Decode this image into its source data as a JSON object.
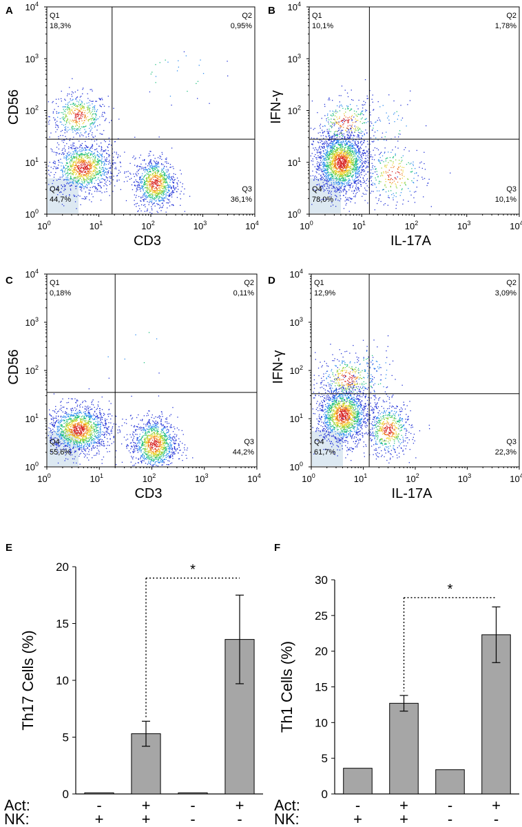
{
  "chart_data": [
    {
      "type": "scatter",
      "panel": "A",
      "xlabel": "CD3",
      "ylabel": "CD56",
      "x_scale": "log",
      "y_scale": "log",
      "xlim": [
        1,
        10000
      ],
      "ylim": [
        1,
        10000
      ],
      "x_ticks": [
        {
          "base": "10",
          "exp": "0"
        },
        {
          "base": "10",
          "exp": "1"
        },
        {
          "base": "10",
          "exp": "2"
        },
        {
          "base": "10",
          "exp": "3"
        },
        {
          "base": "10",
          "exp": "4"
        }
      ],
      "y_ticks": [
        {
          "base": "10",
          "exp": "0"
        },
        {
          "base": "10",
          "exp": "1"
        },
        {
          "base": "10",
          "exp": "2"
        },
        {
          "base": "10",
          "exp": "3"
        },
        {
          "base": "10",
          "exp": "4"
        }
      ],
      "gate_x": 18,
      "gate_y": 28,
      "quadrants": {
        "Q1": {
          "label": "Q1",
          "value": "18,3%"
        },
        "Q2": {
          "label": "Q2",
          "value": "0,95%"
        },
        "Q3": {
          "label": "Q3",
          "value": "36,1%"
        },
        "Q4": {
          "label": "Q4",
          "value": "44,7%"
        }
      },
      "populations": [
        {
          "center": [
            4,
            80
          ],
          "spread": [
            0.28,
            0.22
          ],
          "weight": 0.18
        },
        {
          "center": [
            5,
            8
          ],
          "spread": [
            0.3,
            0.25
          ],
          "weight": 0.45
        },
        {
          "center": [
            120,
            4
          ],
          "spread": [
            0.2,
            0.25
          ],
          "weight": 0.36
        },
        {
          "center": [
            300,
            500
          ],
          "spread": [
            0.4,
            0.3
          ],
          "weight": 0.01
        }
      ]
    },
    {
      "type": "scatter",
      "panel": "B",
      "xlabel": "IL-17A",
      "ylabel": "IFN-γ",
      "x_scale": "log",
      "y_scale": "log",
      "xlim": [
        1,
        10000
      ],
      "ylim": [
        1,
        10000
      ],
      "x_ticks": [
        {
          "base": "10",
          "exp": "0"
        },
        {
          "base": "10",
          "exp": "1"
        },
        {
          "base": "10",
          "exp": "2"
        },
        {
          "base": "10",
          "exp": "3"
        },
        {
          "base": "10",
          "exp": "4"
        }
      ],
      "y_ticks": [
        {
          "base": "10",
          "exp": "0"
        },
        {
          "base": "10",
          "exp": "1"
        },
        {
          "base": "10",
          "exp": "2"
        },
        {
          "base": "10",
          "exp": "3"
        },
        {
          "base": "10",
          "exp": "4"
        }
      ],
      "gate_x": 14,
      "gate_y": 28,
      "quadrants": {
        "Q1": {
          "label": "Q1",
          "value": "10,1%"
        },
        "Q2": {
          "label": "Q2",
          "value": "1,78%"
        },
        "Q3": {
          "label": "Q3",
          "value": "10,1%"
        },
        "Q4": {
          "label": "Q4",
          "value": "78,0%"
        }
      },
      "populations": [
        {
          "center": [
            4,
            10
          ],
          "spread": [
            0.25,
            0.3
          ],
          "weight": 0.78
        },
        {
          "center": [
            5,
            60
          ],
          "spread": [
            0.3,
            0.25
          ],
          "weight": 0.1
        },
        {
          "center": [
            40,
            6
          ],
          "spread": [
            0.3,
            0.3
          ],
          "weight": 0.1
        },
        {
          "center": [
            30,
            60
          ],
          "spread": [
            0.3,
            0.25
          ],
          "weight": 0.02
        }
      ]
    },
    {
      "type": "scatter",
      "panel": "C",
      "xlabel": "CD3",
      "ylabel": "CD56",
      "x_scale": "log",
      "y_scale": "log",
      "xlim": [
        1,
        10000
      ],
      "ylim": [
        1,
        10000
      ],
      "x_ticks": [
        {
          "base": "10",
          "exp": "0"
        },
        {
          "base": "10",
          "exp": "1"
        },
        {
          "base": "10",
          "exp": "2"
        },
        {
          "base": "10",
          "exp": "3"
        },
        {
          "base": "10",
          "exp": "4"
        }
      ],
      "y_ticks": [
        {
          "base": "10",
          "exp": "0"
        },
        {
          "base": "10",
          "exp": "1"
        },
        {
          "base": "10",
          "exp": "2"
        },
        {
          "base": "10",
          "exp": "3"
        },
        {
          "base": "10",
          "exp": "4"
        }
      ],
      "gate_x": 20,
      "gate_y": 35,
      "quadrants": {
        "Q1": {
          "label": "Q1",
          "value": "0,18%"
        },
        "Q2": {
          "label": "Q2",
          "value": "0,11%"
        },
        "Q3": {
          "label": "Q3",
          "value": "44,2%"
        },
        "Q4": {
          "label": "Q4",
          "value": "55,6%"
        }
      },
      "populations": [
        {
          "center": [
            4,
            6
          ],
          "spread": [
            0.3,
            0.25
          ],
          "weight": 0.555
        },
        {
          "center": [
            110,
            3
          ],
          "spread": [
            0.22,
            0.28
          ],
          "weight": 0.442
        },
        {
          "center": [
            30,
            300
          ],
          "spread": [
            0.5,
            0.4
          ],
          "weight": 0.003
        }
      ]
    },
    {
      "type": "scatter",
      "panel": "D",
      "xlabel": "IL-17A",
      "ylabel": "IFN-γ",
      "x_scale": "log",
      "y_scale": "log",
      "xlim": [
        1,
        10000
      ],
      "ylim": [
        1,
        10000
      ],
      "x_ticks": [
        {
          "base": "10",
          "exp": "0"
        },
        {
          "base": "10",
          "exp": "1"
        },
        {
          "base": "10",
          "exp": "2"
        },
        {
          "base": "10",
          "exp": "3"
        },
        {
          "base": "10",
          "exp": "4"
        }
      ],
      "y_ticks": [
        {
          "base": "10",
          "exp": "0"
        },
        {
          "base": "10",
          "exp": "1"
        },
        {
          "base": "10",
          "exp": "2"
        },
        {
          "base": "10",
          "exp": "3"
        },
        {
          "base": "10",
          "exp": "4"
        }
      ],
      "gate_x": 13,
      "gate_y": 33,
      "quadrants": {
        "Q1": {
          "label": "Q1",
          "value": "12,9%"
        },
        "Q2": {
          "label": "Q2",
          "value": "3,09%"
        },
        "Q3": {
          "label": "Q3",
          "value": "22,3%"
        },
        "Q4": {
          "label": "Q4",
          "value": "61,7%"
        }
      },
      "populations": [
        {
          "center": [
            4,
            12
          ],
          "spread": [
            0.25,
            0.3
          ],
          "weight": 0.62
        },
        {
          "center": [
            5,
            70
          ],
          "spread": [
            0.3,
            0.25
          ],
          "weight": 0.13
        },
        {
          "center": [
            30,
            6
          ],
          "spread": [
            0.22,
            0.28
          ],
          "weight": 0.22
        },
        {
          "center": [
            15,
            100
          ],
          "spread": [
            0.2,
            0.3
          ],
          "weight": 0.03
        }
      ]
    },
    {
      "type": "bar",
      "panel": "E",
      "ylabel": "Th17 Cells (%)",
      "ylim": [
        0,
        20
      ],
      "yticks": [
        "0",
        "5",
        "10",
        "15",
        "20"
      ],
      "values": [
        0.1,
        5.3,
        0.1,
        13.6
      ],
      "errors": [
        0,
        1.1,
        0,
        3.9
      ],
      "significance": {
        "from": 1,
        "to": 3,
        "label": "*",
        "y": 19
      },
      "rows": [
        {
          "label": "Act:",
          "marks": [
            "-",
            "+",
            "-",
            "+"
          ]
        },
        {
          "label": "NK:",
          "marks": [
            "+",
            "+",
            "-",
            "-"
          ]
        }
      ]
    },
    {
      "type": "bar",
      "panel": "F",
      "ylabel": "Th1 Cells (%)",
      "ylim": [
        0,
        30
      ],
      "yticks": [
        "0",
        "5",
        "10",
        "15",
        "20",
        "25",
        "30"
      ],
      "values": [
        3.6,
        12.7,
        3.4,
        22.3
      ],
      "errors": [
        0,
        1.1,
        0,
        3.9
      ],
      "significance": {
        "from": 1,
        "to": 3,
        "label": "*",
        "y": 27.5
      },
      "rows": [
        {
          "label": "Act:",
          "marks": [
            "-",
            "+",
            "-",
            "+"
          ]
        },
        {
          "label": "NK:",
          "marks": [
            "+",
            "+",
            "-",
            "-"
          ]
        }
      ]
    }
  ],
  "colors": {
    "axis": "#000000",
    "bar_fill": "#a6a6a6",
    "bar_stroke": "#000000",
    "density": [
      "#1f2fd6",
      "#2d8cf0",
      "#1fbf7f",
      "#8fd13a",
      "#f0d22c",
      "#ef7c1e",
      "#d72424"
    ],
    "gate_box": "#dde9f2"
  }
}
